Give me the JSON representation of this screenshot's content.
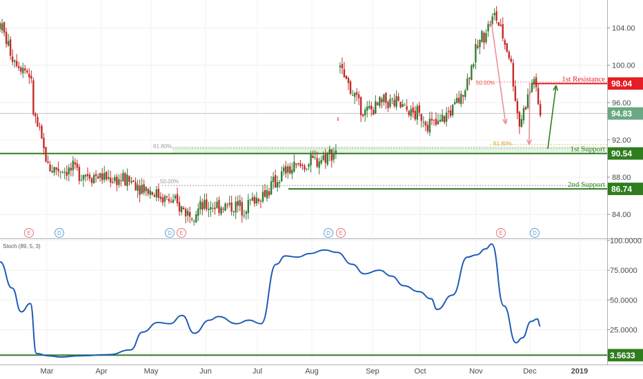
{
  "chart_data": [
    {
      "type": "candlestick",
      "pane": "price",
      "y_ticks": [
        "104.00",
        "100.00",
        "96.00",
        "92.00",
        "88.00",
        "84.00"
      ],
      "ylim": [
        81.5,
        107
      ],
      "x_ticks": [
        "Mar",
        "Apr",
        "May",
        "Jun",
        "Jul",
        "Aug",
        "Sep",
        "Oct",
        "Nov",
        "Dec",
        "2019"
      ],
      "current_price": {
        "label": "94.83",
        "value": 94.83,
        "color": "#6aa884"
      },
      "levels": [
        {
          "name": "1st Resistance",
          "label": "98.04",
          "value": 98.04,
          "color": "#e51e25"
        },
        {
          "name": "1st Support",
          "label": "90.54",
          "value": 90.54,
          "color": "#2e7d1e"
        },
        {
          "name": "2nd Support",
          "label": "86.74",
          "value": 86.74,
          "color": "#2e7d1e"
        }
      ],
      "fib_labels": [
        "61.80%",
        "50.00%",
        "61.80%",
        "50.00%"
      ],
      "event_markers": [
        {
          "letter": "E"
        },
        {
          "letter": "D"
        },
        {
          "letter": "D"
        },
        {
          "letter": "E"
        },
        {
          "letter": "D"
        },
        {
          "letter": "E"
        },
        {
          "letter": "E"
        },
        {
          "letter": "D"
        }
      ],
      "price_path": [
        [
          0,
          104.5
        ],
        [
          0.02,
          101
        ],
        [
          0.05,
          99
        ],
        [
          0.055,
          95
        ],
        [
          0.08,
          89
        ],
        [
          0.12,
          88.7
        ],
        [
          0.17,
          88
        ],
        [
          0.22,
          87.5
        ],
        [
          0.27,
          85.8
        ],
        [
          0.31,
          84.2
        ],
        [
          0.35,
          85
        ],
        [
          0.4,
          84.8
        ],
        [
          0.44,
          86.5
        ],
        [
          0.47,
          88.6
        ],
        [
          0.52,
          89.7
        ],
        [
          0.555,
          91
        ],
        [
          0.56,
          99.5
        ],
        [
          0.6,
          94.8
        ],
        [
          0.64,
          96.2
        ],
        [
          0.69,
          94.5
        ],
        [
          0.72,
          93.5
        ],
        [
          0.76,
          96.5
        ],
        [
          0.79,
          102.5
        ],
        [
          0.815,
          105.5
        ],
        [
          0.84,
          100.8
        ],
        [
          0.855,
          93.6
        ],
        [
          0.88,
          98.8
        ],
        [
          0.885,
          96
        ],
        [
          0.89,
          94.8
        ]
      ],
      "arrows": [
        "down",
        "down",
        "up"
      ],
      "colors": {
        "up": "#2e7d32",
        "down": "#c62828",
        "grid": "#eeeeee"
      }
    },
    {
      "type": "line",
      "pane": "indicator",
      "title": "Stoch (89, 5, 3)",
      "y_ticks": [
        "100.0000",
        "75.0000",
        "50.0000",
        "25.0000"
      ],
      "ylim": [
        -2,
        100
      ],
      "level": {
        "label": "3.5633",
        "value": 3.5633,
        "color": "#2e7d1e"
      },
      "line_color": "#1e5bb8",
      "series": [
        [
          0,
          82
        ],
        [
          0.02,
          60
        ],
        [
          0.035,
          40
        ],
        [
          0.05,
          47
        ],
        [
          0.06,
          5
        ],
        [
          0.08,
          3
        ],
        [
          0.1,
          2
        ],
        [
          0.13,
          3
        ],
        [
          0.18,
          4
        ],
        [
          0.215,
          8
        ],
        [
          0.235,
          23
        ],
        [
          0.26,
          31
        ],
        [
          0.28,
          30
        ],
        [
          0.3,
          37
        ],
        [
          0.32,
          22
        ],
        [
          0.345,
          33
        ],
        [
          0.36,
          36
        ],
        [
          0.39,
          30
        ],
        [
          0.41,
          33
        ],
        [
          0.43,
          30
        ],
        [
          0.455,
          80
        ],
        [
          0.47,
          87
        ],
        [
          0.49,
          86
        ],
        [
          0.51,
          89
        ],
        [
          0.535,
          92
        ],
        [
          0.555,
          90
        ],
        [
          0.58,
          80
        ],
        [
          0.6,
          72
        ],
        [
          0.625,
          75
        ],
        [
          0.645,
          70
        ],
        [
          0.665,
          62
        ],
        [
          0.69,
          57
        ],
        [
          0.71,
          51
        ],
        [
          0.72,
          42
        ],
        [
          0.745,
          54
        ],
        [
          0.77,
          86
        ],
        [
          0.785,
          88
        ],
        [
          0.8,
          93
        ],
        [
          0.81,
          97
        ],
        [
          0.83,
          45
        ],
        [
          0.85,
          14
        ],
        [
          0.86,
          18
        ],
        [
          0.875,
          32
        ],
        [
          0.885,
          34
        ],
        [
          0.89,
          28
        ]
      ]
    }
  ]
}
